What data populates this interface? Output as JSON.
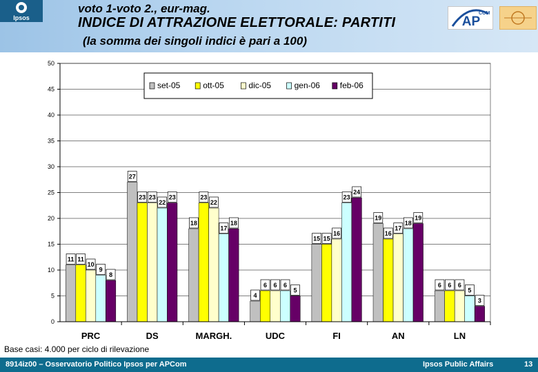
{
  "header": {
    "title_line1": "voto 1-voto 2., eur-mag.",
    "title_line2": "INDICE DI ATTRAZIONE ELETTORALE: PARTITI",
    "title_line3": "(la somma dei singoli indici è pari a 100)",
    "logo_ipsos": "Ipsos",
    "logo_ap": "AP",
    "logo_ap_sup": "COM"
  },
  "chart_data": {
    "type": "bar",
    "categories": [
      "PRC",
      "DS",
      "MARGH.",
      "UDC",
      "FI",
      "AN",
      "LN"
    ],
    "series": [
      {
        "name": "set-05",
        "color": "#c0c0c0",
        "values": [
          11,
          27,
          18,
          4,
          15,
          19,
          6
        ]
      },
      {
        "name": "ott-05",
        "color": "#ffff00",
        "values": [
          11,
          23,
          23,
          6,
          15,
          16,
          6
        ]
      },
      {
        "name": "dic-05",
        "color": "#ffffcc",
        "values": [
          10,
          23,
          22,
          6,
          16,
          17,
          6
        ]
      },
      {
        "name": "gen-06",
        "color": "#ccffff",
        "values": [
          9,
          22,
          17,
          6,
          23,
          18,
          5
        ]
      },
      {
        "name": "feb-06",
        "color": "#660066",
        "values": [
          8,
          23,
          18,
          5,
          24,
          19,
          3
        ]
      }
    ],
    "ylim": [
      0,
      50
    ],
    "yticks": [
      0,
      5,
      10,
      15,
      20,
      25,
      30,
      35,
      40,
      45,
      50
    ],
    "legend_position": "top",
    "grid": true
  },
  "footnote": "Base casi: 4.000 per ciclo di rilevazione",
  "footer": {
    "left": "8914iz00 – Osservatorio Politico Ipsos per APCom",
    "center": "Ipsos Public Affairs",
    "page": "13"
  }
}
